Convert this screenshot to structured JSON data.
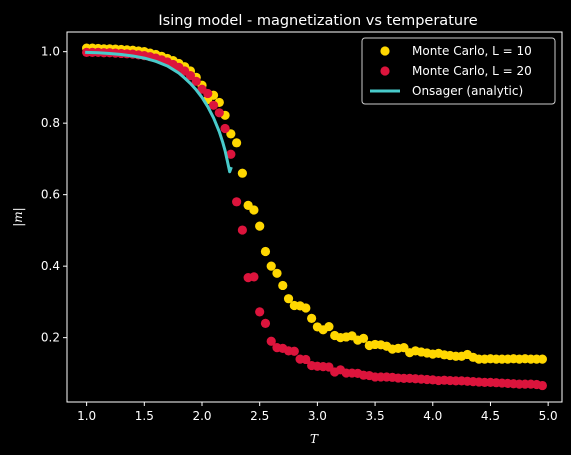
{
  "chart_data": {
    "type": "scatter",
    "title": "Ising model - magnetization vs temperature",
    "xlabel": "T",
    "ylabel": "|m|",
    "xlim": [
      0.83,
      5.12
    ],
    "ylim": [
      0.02,
      1.055
    ],
    "xticks": [
      "1.0",
      "1.5",
      "2.0",
      "2.5",
      "3.0",
      "3.5",
      "4.0",
      "4.5",
      "5.0"
    ],
    "yticks": [
      "0.2",
      "0.4",
      "0.6",
      "0.8",
      "1.0"
    ],
    "grid": false,
    "legend_position": "top-right",
    "series": [
      {
        "name": "Monte Carlo, L = 10",
        "kind": "scatter",
        "color": "#FFD700",
        "x": [
          1.0,
          1.05,
          1.1,
          1.15,
          1.2,
          1.25,
          1.3,
          1.35,
          1.4,
          1.45,
          1.5,
          1.55,
          1.6,
          1.65,
          1.7,
          1.75,
          1.8,
          1.85,
          1.9,
          1.95,
          2.0,
          2.05,
          2.1,
          2.15,
          2.2,
          2.25,
          2.3,
          2.35,
          2.4,
          2.45,
          2.5,
          2.55,
          2.6,
          2.65,
          2.7,
          2.75,
          2.8,
          2.85,
          2.9,
          2.95,
          3.0,
          3.05,
          3.1,
          3.15,
          3.2,
          3.25,
          3.3,
          3.35,
          3.4,
          3.45,
          3.5,
          3.55,
          3.6,
          3.65,
          3.7,
          3.75,
          3.8,
          3.85,
          3.9,
          3.95,
          4.0,
          4.05,
          4.1,
          4.15,
          4.2,
          4.25,
          4.3,
          4.35,
          4.4,
          4.45,
          4.5,
          4.55,
          4.6,
          4.65,
          4.7,
          4.75,
          4.8,
          4.85,
          4.9,
          4.95
        ],
        "y": [
          1.01,
          1.01,
          1.009,
          1.008,
          1.008,
          1.007,
          1.006,
          1.005,
          1.004,
          1.002,
          1.0,
          0.996,
          0.992,
          0.987,
          0.981,
          0.975,
          0.967,
          0.958,
          0.946,
          0.928,
          0.906,
          0.866,
          0.878,
          0.858,
          0.822,
          0.77,
          0.745,
          0.66,
          0.57,
          0.557,
          0.512,
          0.441,
          0.4,
          0.38,
          0.346,
          0.309,
          0.29,
          0.289,
          0.283,
          0.254,
          0.23,
          0.222,
          0.231,
          0.206,
          0.2,
          0.202,
          0.205,
          0.193,
          0.198,
          0.178,
          0.181,
          0.18,
          0.176,
          0.168,
          0.17,
          0.172,
          0.158,
          0.163,
          0.16,
          0.157,
          0.154,
          0.156,
          0.152,
          0.15,
          0.148,
          0.148,
          0.153,
          0.145,
          0.14,
          0.14,
          0.141,
          0.14,
          0.14,
          0.14,
          0.141,
          0.14,
          0.141,
          0.14,
          0.14,
          0.14
        ]
      },
      {
        "name": "Monte Carlo, L = 20",
        "kind": "scatter",
        "color": "#DC143C",
        "x": [
          1.0,
          1.05,
          1.1,
          1.15,
          1.2,
          1.25,
          1.3,
          1.35,
          1.4,
          1.45,
          1.5,
          1.55,
          1.6,
          1.65,
          1.7,
          1.75,
          1.8,
          1.85,
          1.9,
          1.95,
          2.0,
          2.05,
          2.1,
          2.15,
          2.2,
          2.25,
          2.3,
          2.35,
          2.4,
          2.45,
          2.5,
          2.55,
          2.6,
          2.65,
          2.7,
          2.75,
          2.8,
          2.85,
          2.9,
          2.95,
          3.0,
          3.05,
          3.1,
          3.15,
          3.2,
          3.25,
          3.3,
          3.35,
          3.4,
          3.45,
          3.5,
          3.55,
          3.6,
          3.65,
          3.7,
          3.75,
          3.8,
          3.85,
          3.9,
          3.95,
          4.0,
          4.05,
          4.1,
          4.15,
          4.2,
          4.25,
          4.3,
          4.35,
          4.4,
          4.45,
          4.5,
          4.55,
          4.6,
          4.65,
          4.7,
          4.75,
          4.8,
          4.85,
          4.9,
          4.95
        ],
        "y": [
          0.998,
          0.998,
          0.998,
          0.997,
          0.997,
          0.996,
          0.995,
          0.994,
          0.993,
          0.991,
          0.989,
          0.986,
          0.982,
          0.977,
          0.971,
          0.964,
          0.956,
          0.946,
          0.933,
          0.917,
          0.895,
          0.883,
          0.85,
          0.829,
          0.785,
          0.713,
          0.58,
          0.501,
          0.368,
          0.37,
          0.272,
          0.24,
          0.19,
          0.172,
          0.17,
          0.163,
          0.162,
          0.14,
          0.139,
          0.122,
          0.12,
          0.119,
          0.118,
          0.104,
          0.11,
          0.101,
          0.101,
          0.1,
          0.095,
          0.094,
          0.09,
          0.09,
          0.09,
          0.089,
          0.087,
          0.086,
          0.086,
          0.085,
          0.084,
          0.083,
          0.082,
          0.08,
          0.081,
          0.08,
          0.079,
          0.079,
          0.078,
          0.077,
          0.076,
          0.075,
          0.075,
          0.074,
          0.073,
          0.072,
          0.071,
          0.07,
          0.07,
          0.07,
          0.069,
          0.066
        ]
      },
      {
        "name": "Onsager  (analytic)",
        "kind": "line",
        "color": "#48CACA",
        "x": [
          1.0,
          1.1,
          1.2,
          1.3,
          1.4,
          1.5,
          1.6,
          1.7,
          1.8,
          1.85,
          1.9,
          1.95,
          2.0,
          2.05,
          2.1,
          2.15,
          2.18,
          2.2,
          2.22,
          2.24,
          2.25
        ],
        "y": [
          0.998,
          0.997,
          0.995,
          0.992,
          0.988,
          0.982,
          0.973,
          0.96,
          0.94,
          0.926,
          0.911,
          0.893,
          0.872,
          0.846,
          0.815,
          0.776,
          0.746,
          0.723,
          0.694,
          0.664,
          0.673
        ]
      }
    ]
  }
}
